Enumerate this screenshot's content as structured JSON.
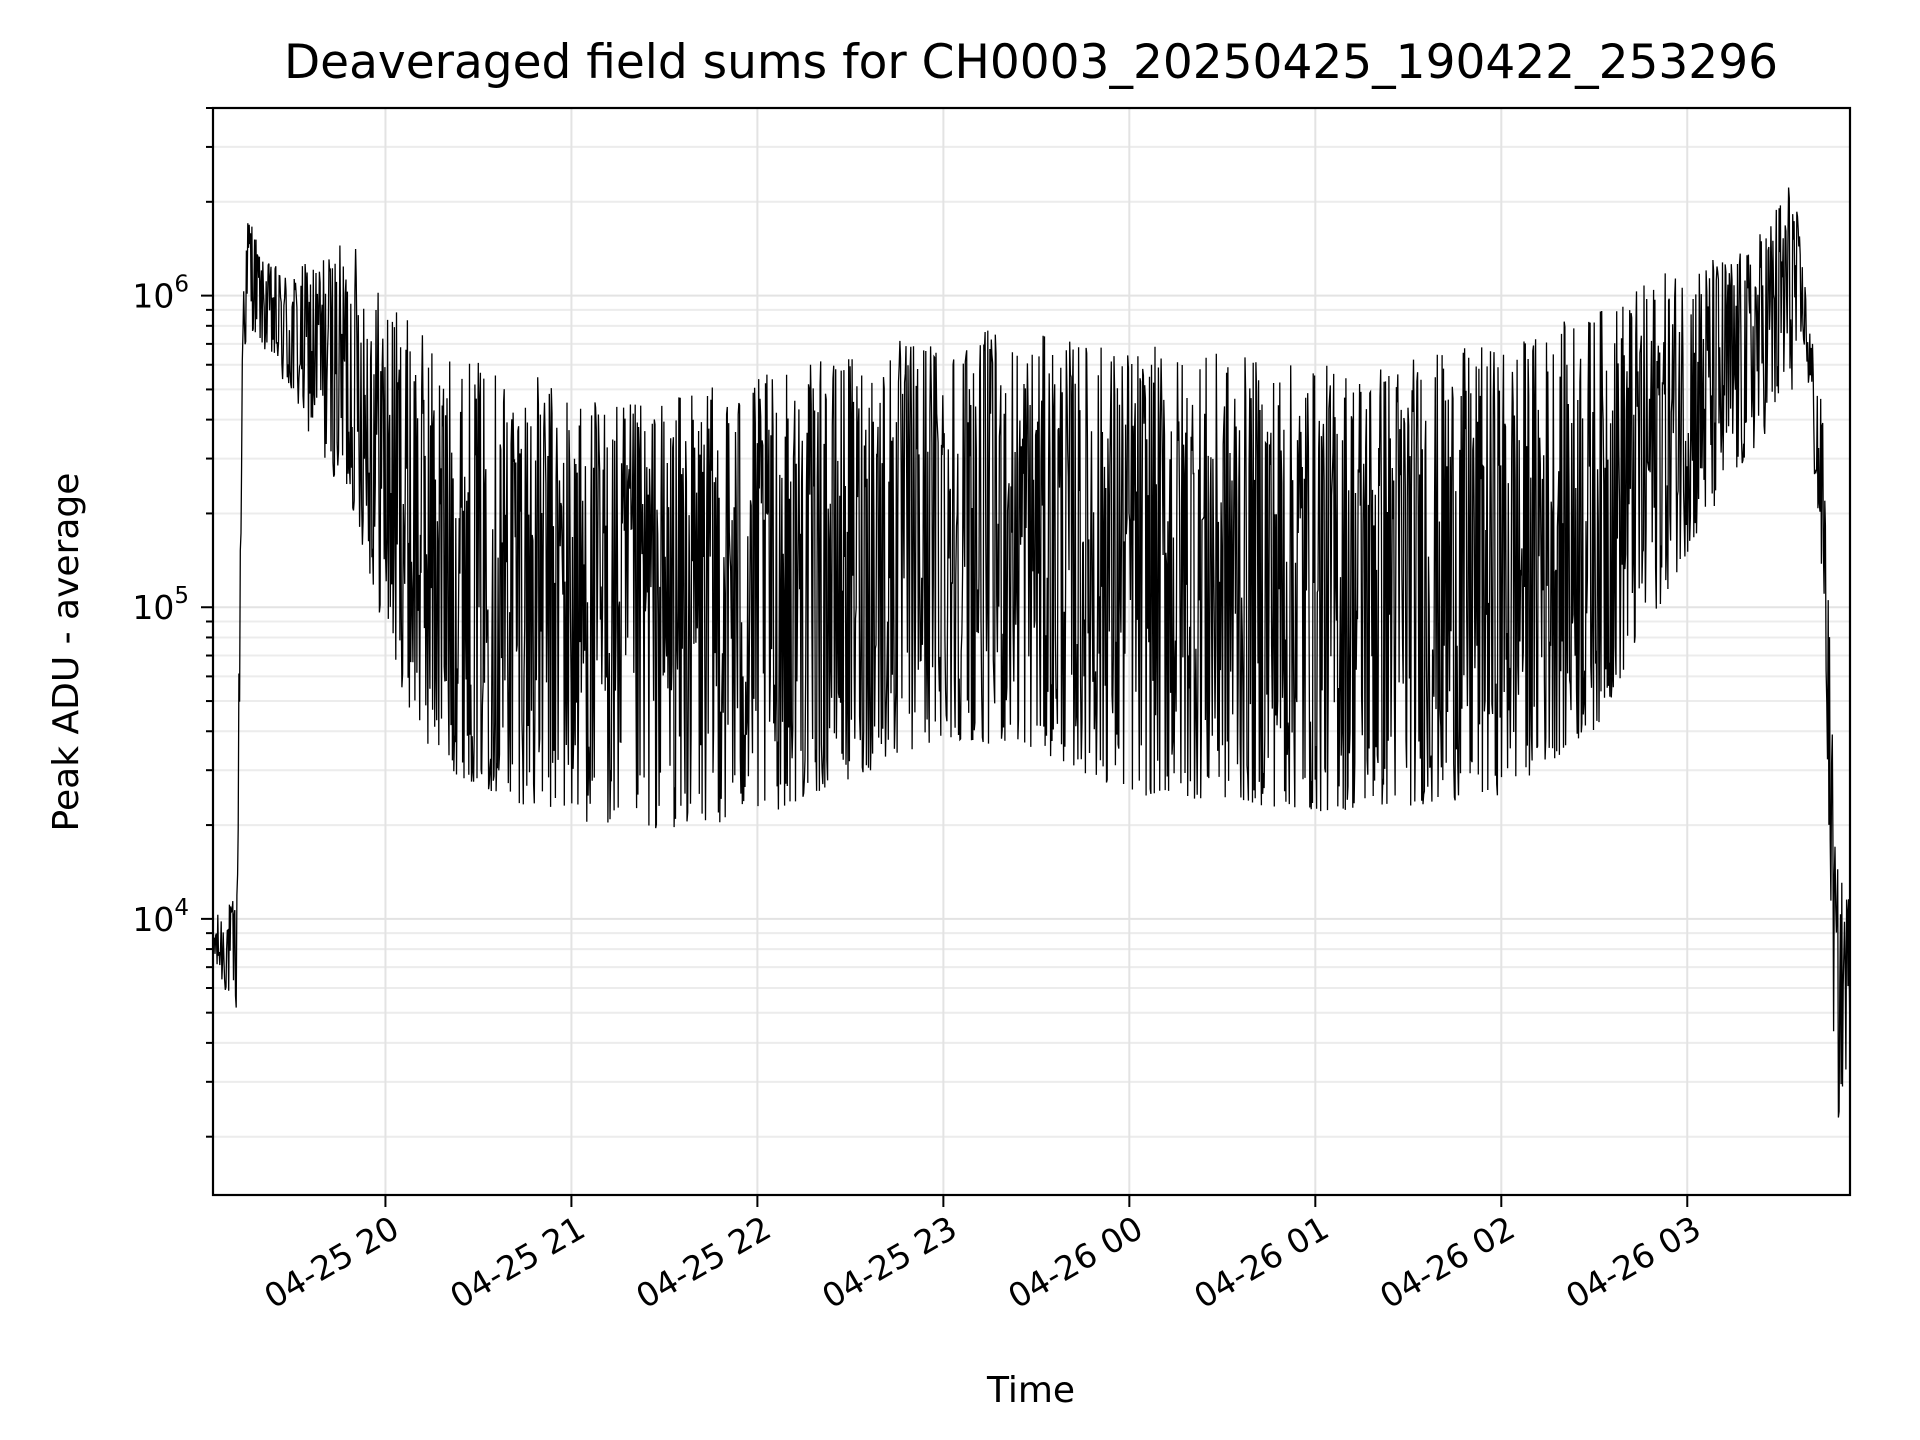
{
  "chart_data": {
    "type": "line",
    "title": "Deaveraged field sums for CH0003_20250425_190422_253296",
    "xlabel": "Time",
    "ylabel": "Peak ADU - average",
    "yscale": "log",
    "ylim": [
      1300,
      4000000
    ],
    "xlim": [
      "2025-04-25 19:04:22",
      "2025-04-26 03:52:30"
    ],
    "grid": true,
    "y_ticks": [
      {
        "value": 10000,
        "base": "10",
        "exp": "4"
      },
      {
        "value": 100000,
        "base": "10",
        "exp": "5"
      },
      {
        "value": 1000000,
        "base": "10",
        "exp": "6"
      }
    ],
    "x_ticks": [
      {
        "value": "2025-04-25 20:00",
        "label": "04-25 20"
      },
      {
        "value": "2025-04-25 21:00",
        "label": "04-25 21"
      },
      {
        "value": "2025-04-25 22:00",
        "label": "04-25 22"
      },
      {
        "value": "2025-04-25 23:00",
        "label": "04-25 23"
      },
      {
        "value": "2025-04-26 00:00",
        "label": "04-26 00"
      },
      {
        "value": "2025-04-26 01:00",
        "label": "04-26 01"
      },
      {
        "value": "2025-04-26 02:00",
        "label": "04-26 02"
      },
      {
        "value": "2025-04-26 03:00",
        "label": "04-26 03"
      }
    ],
    "line_color": "#000000",
    "grid_color": "#e3e3e3",
    "envelope": [
      {
        "t": "2025-04-25 19:04:22",
        "lo": 7000,
        "hi": 10000
      },
      {
        "t": "2025-04-25 19:12:00",
        "lo": 5000,
        "hi": 12000
      },
      {
        "t": "2025-04-25 19:14:00",
        "lo": 600000,
        "hi": 1200000
      },
      {
        "t": "2025-04-25 19:16:00",
        "lo": 800000,
        "hi": 2000000
      },
      {
        "t": "2025-04-25 19:20:00",
        "lo": 700000,
        "hi": 1300000
      },
      {
        "t": "2025-04-25 19:30:00",
        "lo": 450000,
        "hi": 1200000
      },
      {
        "t": "2025-04-25 19:40:00",
        "lo": 300000,
        "hi": 1400000
      },
      {
        "t": "2025-04-25 19:50:00",
        "lo": 200000,
        "hi": 1500000
      },
      {
        "t": "2025-04-25 20:00:00",
        "lo": 80000,
        "hi": 1000000
      },
      {
        "t": "2025-04-25 20:10:00",
        "lo": 40000,
        "hi": 800000
      },
      {
        "t": "2025-04-25 20:20:00",
        "lo": 30000,
        "hi": 650000
      },
      {
        "t": "2025-04-25 20:40:00",
        "lo": 24000,
        "hi": 600000
      },
      {
        "t": "2025-04-25 21:00:00",
        "lo": 21000,
        "hi": 500000
      },
      {
        "t": "2025-04-25 21:20:00",
        "lo": 19000,
        "hi": 450000
      },
      {
        "t": "2025-04-25 21:40:00",
        "lo": 20000,
        "hi": 500000
      },
      {
        "t": "2025-04-25 22:00:00",
        "lo": 21000,
        "hi": 550000
      },
      {
        "t": "2025-04-25 22:30:00",
        "lo": 28000,
        "hi": 650000
      },
      {
        "t": "2025-04-25 23:00:00",
        "lo": 38000,
        "hi": 800000
      },
      {
        "t": "2025-04-25 23:30:00",
        "lo": 35000,
        "hi": 750000
      },
      {
        "t": "2025-04-26 00:00:00",
        "lo": 25000,
        "hi": 700000
      },
      {
        "t": "2025-04-26 00:30:00",
        "lo": 24000,
        "hi": 650000
      },
      {
        "t": "2025-04-26 01:00:00",
        "lo": 22000,
        "hi": 600000
      },
      {
        "t": "2025-04-26 01:30:00",
        "lo": 23000,
        "hi": 650000
      },
      {
        "t": "2025-04-26 02:00:00",
        "lo": 25000,
        "hi": 700000
      },
      {
        "t": "2025-04-26 02:30:00",
        "lo": 40000,
        "hi": 900000
      },
      {
        "t": "2025-04-26 03:00:00",
        "lo": 150000,
        "hi": 1300000
      },
      {
        "t": "2025-04-26 03:20:00",
        "lo": 300000,
        "hi": 1400000
      },
      {
        "t": "2025-04-26 03:34:00",
        "lo": 500000,
        "hi": 2500000
      },
      {
        "t": "2025-04-26 03:38:00",
        "lo": 700000,
        "hi": 1100000
      },
      {
        "t": "2025-04-26 03:44:00",
        "lo": 100000,
        "hi": 400000
      },
      {
        "t": "2025-04-26 03:48:00",
        "lo": 2000,
        "hi": 15000
      },
      {
        "t": "2025-04-26 03:52:30",
        "lo": 4000,
        "hi": 12000
      }
    ]
  }
}
